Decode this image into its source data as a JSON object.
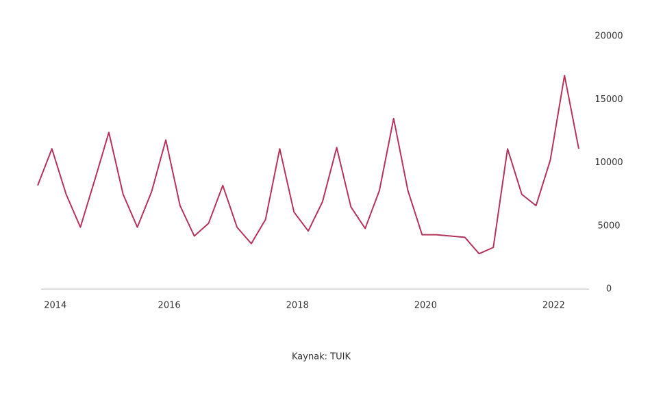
{
  "chart_data": {
    "type": "line",
    "categories": [
      null,
      "2014",
      null,
      null,
      null,
      null,
      null,
      null,
      null,
      "2016",
      null,
      null,
      null,
      null,
      null,
      null,
      null,
      null,
      "2018",
      null,
      null,
      null,
      null,
      null,
      null,
      null,
      null,
      "2020",
      null,
      null,
      null,
      null,
      null,
      null,
      null,
      null,
      "2022",
      null,
      null
    ],
    "series": [
      {
        "name": "TUIK",
        "color": "#b5335a",
        "values": [
          8200,
          11100,
          7500,
          4900,
          8600,
          12400,
          7500,
          4900,
          7700,
          11800,
          6600,
          4200,
          5200,
          8200,
          4900,
          3600,
          5500,
          11100,
          6100,
          4600,
          6900,
          11200,
          6500,
          4800,
          7800,
          13500,
          7800,
          4300,
          4300,
          4200,
          4100,
          2800,
          3300,
          11100,
          7500,
          6600,
          10200,
          16900,
          11100
        ]
      }
    ],
    "ylim": [
      0,
      20000
    ],
    "yticks": [
      0,
      5000,
      10000,
      15000,
      20000
    ],
    "grid": false,
    "source": "Kaynak: TUIK"
  }
}
